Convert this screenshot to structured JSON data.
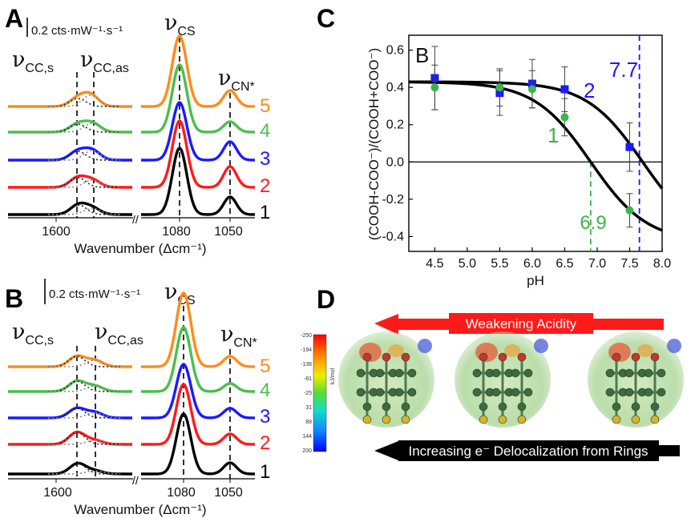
{
  "panels": {
    "A": {
      "label": "A",
      "scale_bar": "0.2 cts·mW⁻¹·s⁻¹",
      "bands": {
        "cc_s": {
          "nu": "ν",
          "sub": "CC,s"
        },
        "cc_as": {
          "nu": "ν",
          "sub": "CC,as"
        },
        "cs": {
          "nu": "ν",
          "sub": "CS"
        },
        "cn": {
          "nu": "ν",
          "sub": "CN*"
        }
      },
      "xlabel": "Wavenumber (Δcm⁻¹)",
      "ticks": [
        "1600",
        "1080",
        "1050"
      ],
      "trace_labels": [
        "5",
        "4",
        "3",
        "2",
        "1"
      ]
    },
    "B": {
      "label": "B",
      "scale_bar": "0.2 cts·mW⁻¹·s⁻¹",
      "bands": {
        "cc_s": {
          "nu": "ν",
          "sub": "CC,s"
        },
        "cc_as": {
          "nu": "ν",
          "sub": "CC,as"
        },
        "cs": {
          "nu": "ν",
          "sub": "CS"
        },
        "cn": {
          "nu": "ν",
          "sub": "CN*"
        }
      },
      "xlabel": "Wavenumber (Δcm⁻¹)",
      "ticks": [
        "1600",
        "1080",
        "1050"
      ],
      "trace_labels": [
        "5",
        "4",
        "3",
        "2",
        "1"
      ]
    },
    "C": {
      "label": "C",
      "inset_label": "B",
      "ylabel": "(COOH-COO⁻)/(COOH+COO⁻)",
      "xlabel": "pH",
      "curve_labels": [
        "2",
        "1"
      ],
      "pka_labels": [
        "7.7",
        "6.9"
      ]
    },
    "D": {
      "label": "D",
      "top_arrow": "Weakening Acidity",
      "bottom_arrow": "Increasing e⁻ Delocalization from Rings",
      "colorbar_unit": "kJ/mol",
      "colorbar_ticks": [
        "-250",
        "-194",
        "-138",
        "-81",
        "-25",
        "31",
        "88",
        "144",
        "200"
      ]
    }
  },
  "colors": {
    "trace5": "#ff8c1a",
    "trace4": "#4bbf4b",
    "trace3": "#1a1aff",
    "trace2": "#ff1a1a",
    "trace1": "#000000",
    "curve2_marker": "#1a1aff",
    "curve1_marker": "#3cb44b",
    "arrow_top": "#ff1a1a",
    "arrow_bottom": "#000000"
  },
  "chart_data": [
    {
      "type": "line",
      "panel": "A",
      "xlabel": "Wavenumber (Δcm⁻¹)",
      "series": [
        {
          "label": "5",
          "color": "#ff8c1a"
        },
        {
          "label": "4",
          "color": "#4bbf4b"
        },
        {
          "label": "3",
          "color": "#1a1aff"
        },
        {
          "label": "2",
          "color": "#ff1a1a"
        },
        {
          "label": "1",
          "color": "#000000"
        }
      ],
      "x_ticks": [
        1600,
        1080,
        1050
      ]
    },
    {
      "type": "line",
      "panel": "B",
      "xlabel": "Wavenumber (Δcm⁻¹)",
      "series": [
        {
          "label": "5",
          "color": "#ff8c1a"
        },
        {
          "label": "4",
          "color": "#4bbf4b"
        },
        {
          "label": "3",
          "color": "#1a1aff"
        },
        {
          "label": "2",
          "color": "#ff1a1a"
        },
        {
          "label": "1",
          "color": "#000000"
        }
      ],
      "x_ticks": [
        1600,
        1080,
        1050
      ]
    },
    {
      "type": "scatter",
      "panel": "C",
      "xlabel": "pH",
      "ylabel": "(COOH-COO⁻)/(COOH+COO⁻)",
      "xlim": [
        4.1,
        8.0
      ],
      "ylim": [
        -0.48,
        0.68
      ],
      "x_ticks": [
        "4.5",
        "5.0",
        "5.5",
        "6.0",
        "6.5",
        "7.0",
        "7.5",
        "8.0"
      ],
      "y_ticks": [
        "-0.4",
        "-0.2",
        "0.0",
        "0.2",
        "0.4",
        "0.6"
      ],
      "series": [
        {
          "name": "2",
          "color": "#1a1aff",
          "marker": "square",
          "points": [
            {
              "x": 4.5,
              "y": 0.45,
              "err": 0.17
            },
            {
              "x": 5.5,
              "y": 0.37,
              "err": 0.12
            },
            {
              "x": 6.0,
              "y": 0.42,
              "err": 0.13
            },
            {
              "x": 6.5,
              "y": 0.39,
              "err": 0.12
            },
            {
              "x": 7.5,
              "y": 0.08,
              "err": 0.13
            }
          ],
          "pka": 7.7,
          "fit": {
            "plateau_high": 0.43,
            "plateau_low": -0.43,
            "pka": 7.7
          }
        },
        {
          "name": "1",
          "color": "#3cb44b",
          "marker": "circle",
          "points": [
            {
              "x": 4.5,
              "y": 0.4,
              "err": 0.12
            },
            {
              "x": 5.5,
              "y": 0.4,
              "err": 0.1
            },
            {
              "x": 6.0,
              "y": 0.39,
              "err": 0.1
            },
            {
              "x": 6.5,
              "y": 0.24,
              "err": 0.1
            },
            {
              "x": 7.5,
              "y": -0.26,
              "err": 0.09
            }
          ],
          "pka": 6.9,
          "fit": {
            "plateau_high": 0.43,
            "plateau_low": -0.43,
            "pka": 6.9
          }
        }
      ]
    }
  ]
}
